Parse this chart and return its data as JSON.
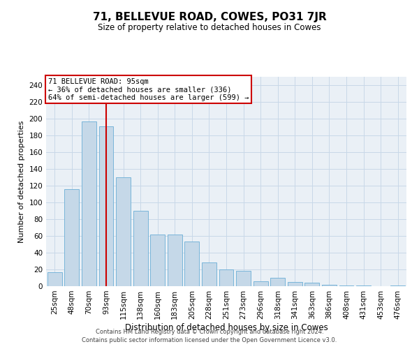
{
  "title": "71, BELLEVUE ROAD, COWES, PO31 7JR",
  "subtitle": "Size of property relative to detached houses in Cowes",
  "xlabel": "Distribution of detached houses by size in Cowes",
  "ylabel": "Number of detached properties",
  "bar_labels": [
    "25sqm",
    "48sqm",
    "70sqm",
    "93sqm",
    "115sqm",
    "138sqm",
    "160sqm",
    "183sqm",
    "205sqm",
    "228sqm",
    "251sqm",
    "273sqm",
    "296sqm",
    "318sqm",
    "341sqm",
    "363sqm",
    "386sqm",
    "408sqm",
    "431sqm",
    "453sqm",
    "476sqm"
  ],
  "bar_values": [
    17,
    116,
    197,
    191,
    130,
    90,
    62,
    62,
    53,
    28,
    20,
    18,
    6,
    10,
    5,
    4,
    2,
    1,
    1,
    0,
    1
  ],
  "bar_color": "#c5d8e8",
  "bar_edgecolor": "#6aaed6",
  "property_bin_index": 3,
  "property_label": "71 BELLEVUE ROAD: 95sqm",
  "annotation_line1": "← 36% of detached houses are smaller (336)",
  "annotation_line2": "64% of semi-detached houses are larger (599) →",
  "vline_color": "#cc0000",
  "box_edgecolor": "#cc0000",
  "ylim": [
    0,
    250
  ],
  "yticks": [
    0,
    20,
    40,
    60,
    80,
    100,
    120,
    140,
    160,
    180,
    200,
    220,
    240
  ],
  "grid_color": "#c8d8e8",
  "footer_line1": "Contains HM Land Registry data © Crown copyright and database right 2024.",
  "footer_line2": "Contains public sector information licensed under the Open Government Licence v3.0.",
  "bg_color": "#eaf0f6",
  "title_fontsize": 11,
  "subtitle_fontsize": 8.5,
  "ylabel_fontsize": 8,
  "xlabel_fontsize": 8.5,
  "tick_fontsize": 7.5,
  "annotation_fontsize": 7.5,
  "footer_fontsize": 6
}
